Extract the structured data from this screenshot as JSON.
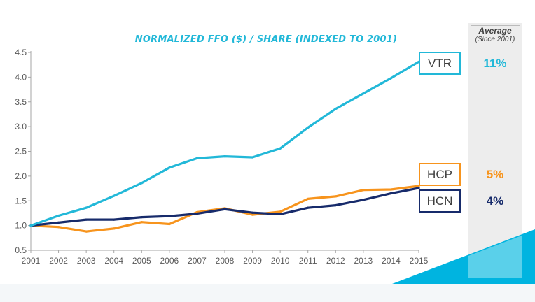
{
  "chart_data": {
    "type": "line",
    "title": "NORMALIZED FFO ($) / SHARE (INDEXED TO 2001)",
    "xlabel": "",
    "ylabel": "",
    "x": [
      "2001",
      "2002",
      "2003",
      "2004",
      "2005",
      "2006",
      "2007",
      "2008",
      "2009",
      "2010",
      "2011",
      "2012",
      "2013",
      "2014",
      "2015"
    ],
    "ylim": [
      0.5,
      4.5
    ],
    "yticks": [
      "0.5",
      "1.0",
      "1.5",
      "2.0",
      "2.5",
      "3.0",
      "3.5",
      "4.0",
      "4.5"
    ],
    "grid": false,
    "legend": "right",
    "series": [
      {
        "name": "VTR",
        "color": "#22b8d8",
        "values": [
          1.0,
          1.2,
          1.36,
          1.6,
          1.86,
          2.17,
          2.36,
          2.4,
          2.38,
          2.56,
          2.98,
          3.36,
          3.67,
          3.98,
          4.31
        ]
      },
      {
        "name": "HCP",
        "color": "#f7941d",
        "values": [
          1.0,
          0.97,
          0.88,
          0.94,
          1.07,
          1.03,
          1.27,
          1.35,
          1.22,
          1.28,
          1.54,
          1.59,
          1.72,
          1.73,
          1.8
        ]
      },
      {
        "name": "HCN",
        "color": "#172b6b",
        "values": [
          1.0,
          1.06,
          1.12,
          1.12,
          1.17,
          1.19,
          1.24,
          1.33,
          1.26,
          1.23,
          1.36,
          1.41,
          1.52,
          1.65,
          1.76
        ]
      }
    ]
  },
  "averages": {
    "title": "Average",
    "subtitle": "(Since 2001)",
    "items": [
      {
        "name": "VTR",
        "value": "11%"
      },
      {
        "name": "HCP",
        "value": "5%"
      },
      {
        "name": "HCN",
        "value": "4%"
      }
    ]
  },
  "colors": {
    "accent": "#00b4e0",
    "panel": "#ededed",
    "text": "#404040"
  }
}
